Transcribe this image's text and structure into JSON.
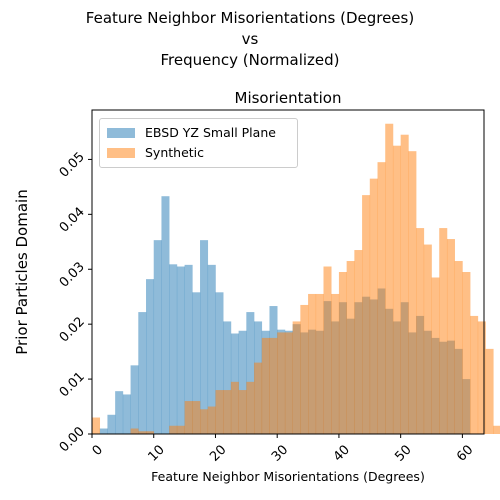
{
  "figure": {
    "title_lines": [
      "Feature Neighbor Misorientations (Degrees)",
      "vs",
      "Frequency (Normalized)"
    ]
  },
  "chart_data": {
    "type": "bar",
    "title": "Misorientation",
    "xlabel": "Feature Neighbor Misorientations (Degrees)",
    "ylabel": "Prior Particles Domain",
    "xlim": [
      0,
      63.5
    ],
    "ylim": [
      0,
      0.059
    ],
    "bin_width": 1.25,
    "x_ticks": [
      0,
      10,
      20,
      30,
      40,
      50,
      60
    ],
    "y_ticks": [
      0.0,
      0.01,
      0.02,
      0.03,
      0.04,
      0.05
    ],
    "y_tick_labels": [
      "0.00",
      "0.01",
      "0.02",
      "0.03",
      "0.04",
      "0.05"
    ],
    "legend_position": "upper-left",
    "series": [
      {
        "name": "EBSD YZ Small Plane",
        "color": "#1f77b4",
        "alpha": 0.5,
        "bins_start": 1.25,
        "values": [
          0.001,
          0.0035,
          0.0078,
          0.0072,
          0.0125,
          0.0222,
          0.0282,
          0.0353,
          0.0433,
          0.0309,
          0.0305,
          0.0308,
          0.0258,
          0.0353,
          0.0308,
          0.0258,
          0.0205,
          0.0183,
          0.0188,
          0.0222,
          0.0205,
          0.0188,
          0.0233,
          0.019,
          0.0188,
          0.02,
          0.0185,
          0.019,
          0.0188,
          0.0242,
          0.0205,
          0.024,
          0.021,
          0.024,
          0.025,
          0.0245,
          0.0265,
          0.0228,
          0.0205,
          0.024,
          0.0185,
          0.0215,
          0.0188,
          0.0175,
          0.0168,
          0.017,
          0.0155,
          0.01,
          0.0
        ]
      },
      {
        "name": "Synthetic",
        "color": "#ff7f0e",
        "alpha": 0.5,
        "bins_start": 0.0,
        "values": [
          0.003,
          0.0,
          0.0,
          0.0,
          0.0,
          0.001,
          0.0005,
          0.0005,
          0.0,
          0.0,
          0.0015,
          0.0015,
          0.006,
          0.006,
          0.0045,
          0.005,
          0.008,
          0.008,
          0.0095,
          0.008,
          0.0095,
          0.013,
          0.0175,
          0.0175,
          0.0185,
          0.0185,
          0.0205,
          0.0235,
          0.0255,
          0.0255,
          0.0305,
          0.0255,
          0.0295,
          0.0315,
          0.0335,
          0.0435,
          0.0465,
          0.0495,
          0.0565,
          0.0525,
          0.0545,
          0.0515,
          0.0375,
          0.0345,
          0.0285,
          0.0375,
          0.0355,
          0.0315,
          0.0295,
          0.0215,
          0.0205,
          0.0155,
          0.0015,
          0.0,
          0.0,
          0.0,
          0.0,
          0.0,
          0.0,
          0.0,
          0.0
        ]
      }
    ]
  }
}
